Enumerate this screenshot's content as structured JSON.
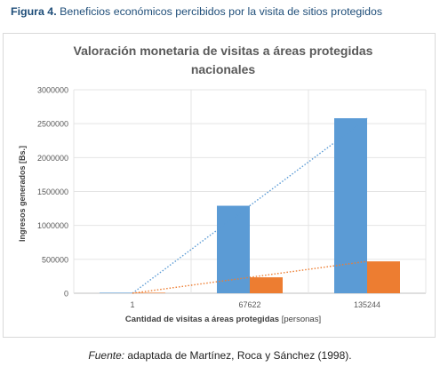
{
  "figure": {
    "caption_label": "Figura 4.",
    "caption_text": " Beneficios económicos percibidos por la visita de sitios protegidos",
    "source_label": "Fuente:",
    "source_text": " adaptada de Martínez, Roca y Sánchez (1998)."
  },
  "chart_data": {
    "type": "bar",
    "title_line1": "Valoración monetaria de visitas a áreas protegidas",
    "title_line2": "nacionales",
    "xlabel_main": "Cantidad de visitas a áreas protegidas",
    "xlabel_unit": "[personas]",
    "ylabel": "Ingresos generados [Bs.]",
    "categories": [
      "1",
      "67622",
      "135244"
    ],
    "ylim": [
      0,
      3000000
    ],
    "yticks": [
      0,
      500000,
      1000000,
      1500000,
      2000000,
      2500000,
      3000000
    ],
    "grid": true,
    "legend": "none",
    "series": [
      {
        "values": [
          19,
          1290000,
          2580000
        ],
        "color": "#5b9bd5"
      },
      {
        "values": [
          2,
          235000,
          470000
        ],
        "color": "#ed7d31"
      }
    ],
    "trendlines": "linear, dotted, one per series"
  }
}
